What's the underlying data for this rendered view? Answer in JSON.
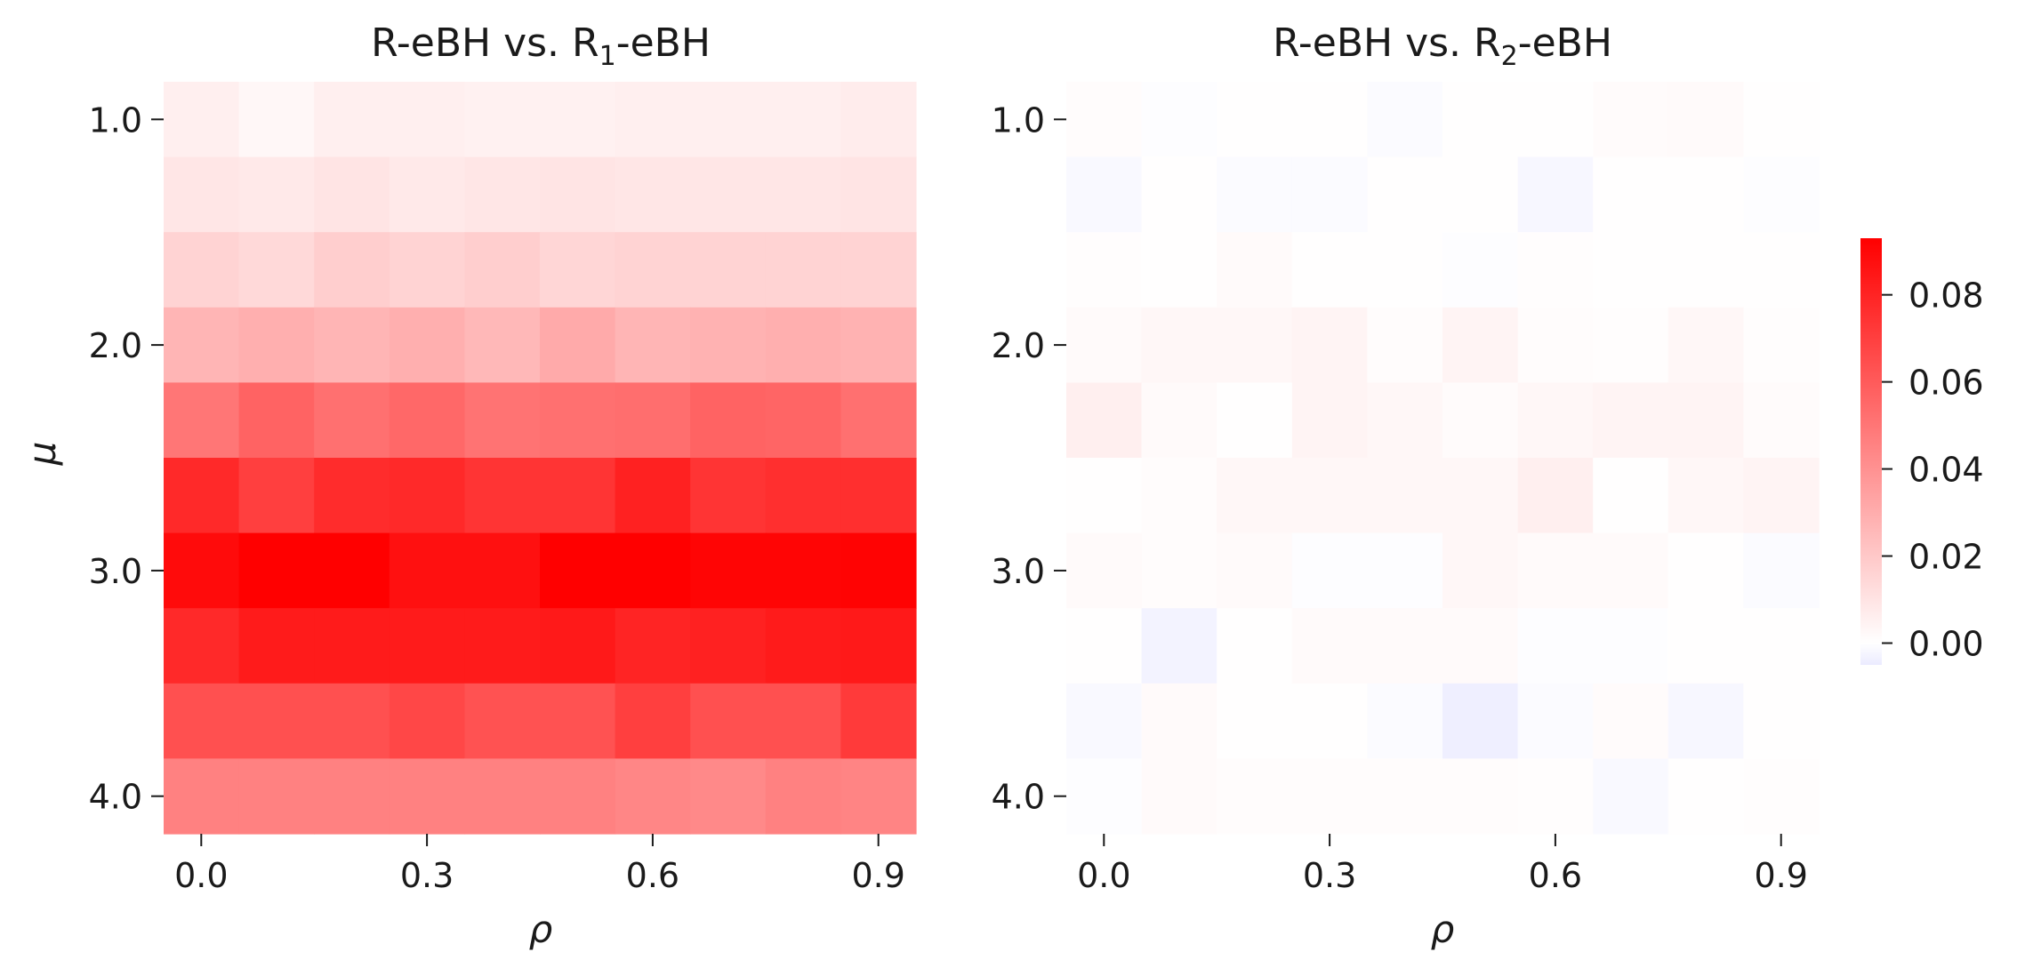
{
  "chart_data": [
    {
      "type": "heatmap",
      "title_main": "R-eBH vs. R",
      "title_sub": "1",
      "title_end": "-eBH",
      "xlabel": "ρ",
      "ylabel": "μ",
      "x_values": [
        0.0,
        0.1,
        0.2,
        0.3,
        0.4,
        0.5,
        0.6,
        0.7,
        0.8,
        0.9
      ],
      "y_values": [
        1.0,
        1.333,
        1.667,
        2.0,
        2.333,
        2.667,
        3.0,
        3.333,
        3.667,
        4.0
      ],
      "x_tick_labels": [
        "0.0",
        "0.3",
        "0.6",
        "0.9"
      ],
      "y_tick_labels": [
        "1.0",
        "2.0",
        "3.0",
        "4.0"
      ],
      "z": [
        [
          0.006,
          0.003,
          0.006,
          0.006,
          0.005,
          0.005,
          0.006,
          0.006,
          0.006,
          0.007
        ],
        [
          0.009,
          0.008,
          0.01,
          0.008,
          0.009,
          0.01,
          0.009,
          0.009,
          0.009,
          0.01
        ],
        [
          0.016,
          0.014,
          0.018,
          0.016,
          0.018,
          0.015,
          0.016,
          0.016,
          0.016,
          0.016
        ],
        [
          0.027,
          0.029,
          0.027,
          0.029,
          0.026,
          0.031,
          0.027,
          0.028,
          0.029,
          0.028
        ],
        [
          0.05,
          0.057,
          0.052,
          0.055,
          0.051,
          0.052,
          0.053,
          0.057,
          0.056,
          0.052
        ],
        [
          0.078,
          0.07,
          0.077,
          0.078,
          0.074,
          0.074,
          0.081,
          0.074,
          0.076,
          0.076
        ],
        [
          0.089,
          0.093,
          0.093,
          0.087,
          0.087,
          0.093,
          0.093,
          0.091,
          0.091,
          0.092
        ],
        [
          0.078,
          0.083,
          0.083,
          0.083,
          0.083,
          0.084,
          0.08,
          0.081,
          0.083,
          0.084
        ],
        [
          0.064,
          0.064,
          0.064,
          0.067,
          0.063,
          0.063,
          0.07,
          0.064,
          0.064,
          0.072
        ],
        [
          0.046,
          0.046,
          0.046,
          0.046,
          0.046,
          0.046,
          0.044,
          0.043,
          0.046,
          0.045
        ]
      ],
      "colormap": {
        "vmin": -0.005,
        "vmax": 0.093,
        "neg_color": "#ebebff",
        "zero_color": "#ffffff",
        "pos_color": "#ff0000"
      }
    },
    {
      "type": "heatmap",
      "title_main": "R-eBH vs. R",
      "title_sub": "2",
      "title_end": "-eBH",
      "xlabel": "ρ",
      "ylabel": "",
      "x_values": [
        0.0,
        0.1,
        0.2,
        0.3,
        0.4,
        0.5,
        0.6,
        0.7,
        0.8,
        0.9
      ],
      "y_values": [
        1.0,
        1.333,
        1.667,
        2.0,
        2.333,
        2.667,
        3.0,
        3.333,
        3.667,
        4.0
      ],
      "x_tick_labels": [
        "0.0",
        "0.3",
        "0.6",
        "0.9"
      ],
      "y_tick_labels": [
        "1.0",
        "2.0",
        "3.0",
        "4.0"
      ],
      "z": [
        [
          0.001,
          -0.0005,
          0.0005,
          0.0005,
          -0.001,
          0.0003,
          0.0005,
          0.0015,
          0.002,
          0.0003
        ],
        [
          -0.0015,
          0.0003,
          -0.001,
          -0.001,
          0.0003,
          0.0003,
          -0.002,
          0.0005,
          0.0005,
          -0.0005
        ],
        [
          0.0008,
          0.0003,
          0.002,
          0.0003,
          0.0003,
          -0.0005,
          0.0008,
          0.0005,
          0.0003,
          0.0003
        ],
        [
          0.002,
          0.003,
          0.003,
          0.004,
          0.001,
          0.004,
          0.001,
          0.0008,
          0.003,
          0.0008
        ],
        [
          0.006,
          0.002,
          0.0005,
          0.004,
          0.003,
          0.0015,
          0.003,
          0.004,
          0.004,
          0.0015
        ],
        [
          0.0005,
          0.001,
          0.003,
          0.003,
          0.003,
          0.003,
          0.006,
          0.0003,
          0.003,
          0.004
        ],
        [
          0.002,
          0.001,
          0.002,
          -0.0005,
          -0.0005,
          0.003,
          0.002,
          0.002,
          0.0003,
          -0.001
        ],
        [
          0.0003,
          -0.003,
          0.0005,
          0.002,
          0.002,
          0.002,
          -0.0005,
          -0.0005,
          0.0003,
          0.0005
        ],
        [
          -0.0015,
          0.002,
          0.0003,
          0.0003,
          -0.001,
          -0.004,
          -0.001,
          0.0015,
          -0.002,
          0.0003
        ],
        [
          -0.0005,
          0.002,
          0.001,
          0.001,
          0.001,
          0.001,
          0.0008,
          -0.0015,
          0.0005,
          0.0008
        ]
      ],
      "colormap": {
        "vmin": -0.005,
        "vmax": 0.093,
        "neg_color": "#ebebff",
        "zero_color": "#ffffff",
        "pos_color": "#ff0000"
      }
    }
  ],
  "colorbar": {
    "vmin": -0.005,
    "vmax": 0.093,
    "tick_values": [
      0.0,
      0.02,
      0.04,
      0.06,
      0.08
    ],
    "tick_labels": [
      "0.00",
      "0.02",
      "0.04",
      "0.06",
      "0.08"
    ]
  }
}
